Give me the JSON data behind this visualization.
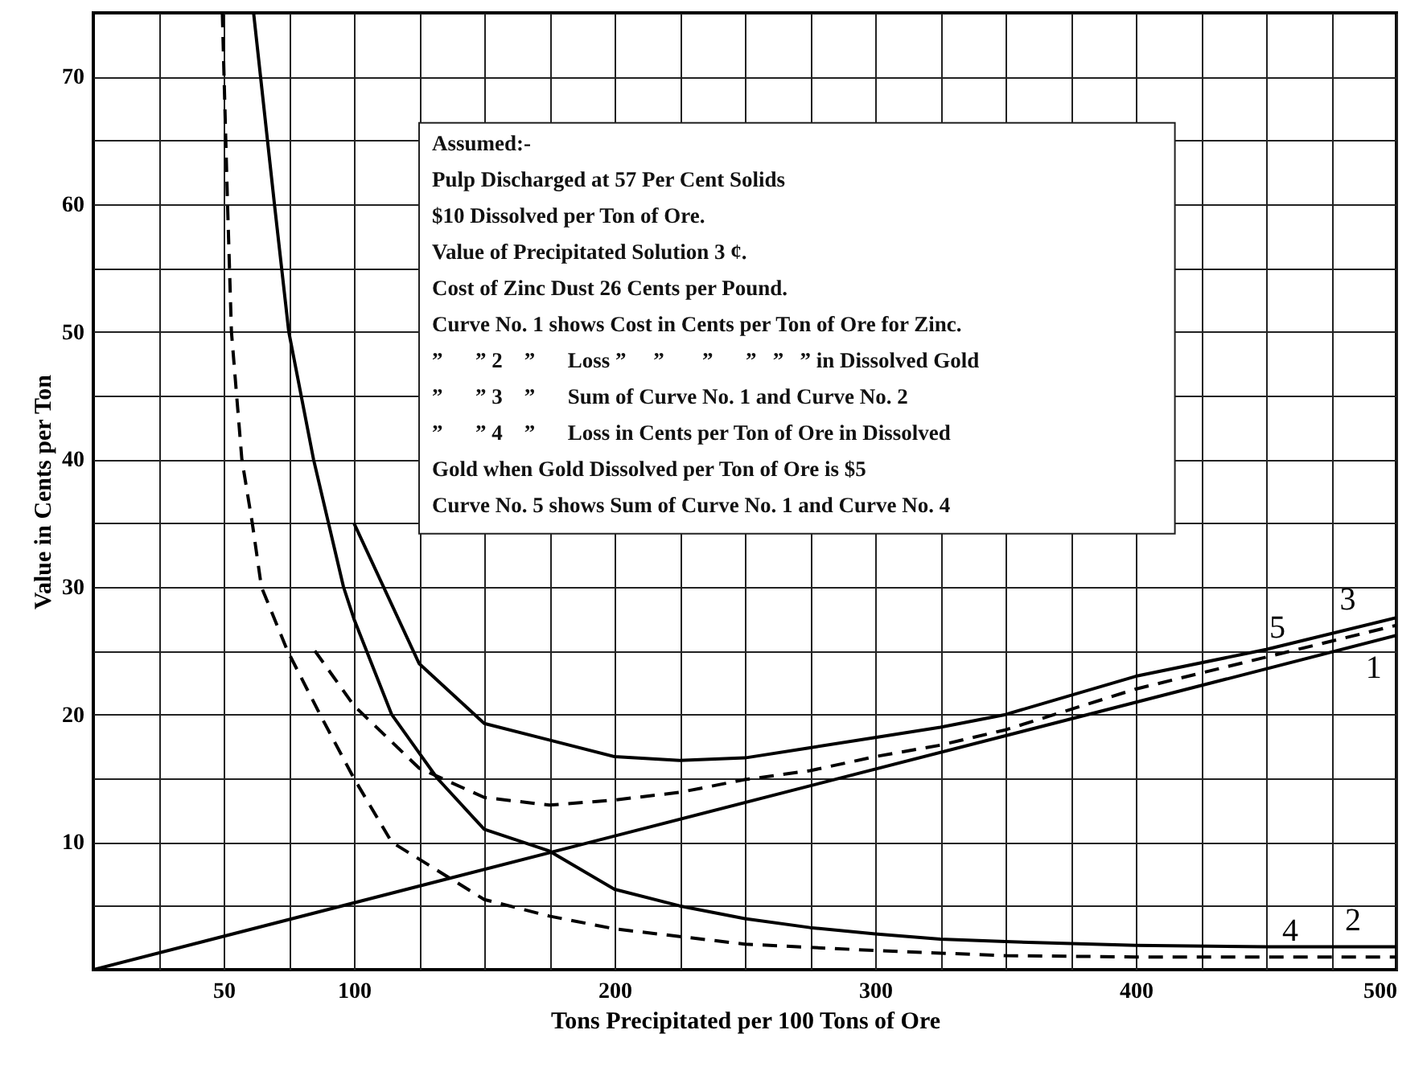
{
  "chart_data": {
    "type": "line",
    "xlabel": "Tons Precipitated per 100 Tons of Ore",
    "ylabel": "Value in Cents per Ton",
    "xlim": [
      0,
      500
    ],
    "ylim": [
      0,
      75
    ],
    "xticks": [
      {
        "value": 25,
        "label": null
      },
      50,
      {
        "value": 75,
        "label": null
      },
      100,
      {
        "value": 125,
        "label": null
      },
      {
        "value": 150,
        "label": null
      },
      {
        "value": 175,
        "label": null
      },
      200,
      {
        "value": 225,
        "label": null
      },
      {
        "value": 250,
        "label": null
      },
      {
        "value": 275,
        "label": null
      },
      300,
      {
        "value": 325,
        "label": null
      },
      {
        "value": 350,
        "label": null
      },
      {
        "value": 375,
        "label": null
      },
      400,
      {
        "value": 425,
        "label": null
      },
      {
        "value": 450,
        "label": null
      },
      {
        "value": 475,
        "label": null
      },
      500
    ],
    "yticks": [
      {
        "value": 5,
        "label": null
      },
      10,
      {
        "value": 15,
        "label": null
      },
      20,
      {
        "value": 25,
        "label": null
      },
      30,
      {
        "value": 35,
        "label": null
      },
      40,
      {
        "value": 45,
        "label": null
      },
      50,
      {
        "value": 55,
        "label": null
      },
      60,
      {
        "value": 65,
        "label": null
      },
      70
    ],
    "grid": true,
    "marker": "none",
    "series": [
      {
        "color": "#000000",
        "line_style": "solid",
        "x": [
          0,
          500
        ],
        "values": [
          0,
          26.2
        ]
      },
      {
        "color": "#000000",
        "line_style": "solid",
        "x": [
          61.5,
          69.5,
          75,
          84.5,
          96,
          100,
          114.5,
          132,
          150,
          175,
          200,
          225,
          250,
          275,
          300,
          325,
          350,
          400,
          450,
          500
        ],
        "values": [
          75,
          60,
          50,
          40,
          30,
          27.5,
          20,
          15,
          11,
          9.3,
          6.3,
          5,
          4,
          3.3,
          2.8,
          2.4,
          2.2,
          1.9,
          1.8,
          1.8
        ]
      },
      {
        "color": "#000000",
        "line_style": "solid",
        "x": [
          100,
          125,
          150,
          175,
          200,
          225,
          250,
          275,
          300,
          325,
          350,
          400,
          450,
          500
        ],
        "values": [
          35,
          24,
          19.3,
          18,
          16.7,
          16.4,
          16.6,
          17.4,
          18.2,
          19,
          20,
          23,
          25.1,
          27.6
        ]
      },
      {
        "color": "#000000",
        "line_style": "dashed",
        "x": [
          49.5,
          51.5,
          53,
          57,
          61,
          64.5,
          74.5,
          87,
          100,
          114.5,
          150,
          175,
          200,
          225,
          250,
          300,
          350,
          400,
          450,
          500
        ],
        "values": [
          75,
          60,
          50,
          40,
          35,
          30,
          25,
          20,
          15,
          10,
          5.5,
          4.2,
          3.2,
          2.6,
          2,
          1.5,
          1.1,
          1,
          1,
          1
        ]
      },
      {
        "color": "#000000",
        "line_style": "dashed",
        "x": [
          85,
          100,
          125,
          150,
          175,
          200,
          225,
          250,
          275,
          300,
          325,
          350,
          400,
          450,
          500
        ],
        "values": [
          25,
          20.7,
          15.8,
          13.5,
          12.9,
          13.3,
          13.9,
          14.9,
          15.6,
          16.7,
          17.6,
          18.8,
          22,
          24.5,
          27
        ]
      }
    ],
    "annotations": [
      "Assumed:-",
      "Pulp Discharged at 57 Per Cent Solids",
      "$10 Dissolved per Ton of Ore.",
      "Value of Precipitated Solution 3 ¢.",
      "Cost of Zinc Dust 26 Cents per Pound.",
      "Curve No. 1 shows Cost in Cents per Ton of Ore for Zinc.",
      "    ”      ” 2    ”      Loss ”     ”       ”      ”   ”   ” in Dissolved Gold",
      "    ”      ” 3    ”      Sum of Curve No. 1 and Curve No. 2",
      "    ”      ” 4    ”      Loss in Cents per Ton of Ore in Dissolved",
      "Gold when Gold Dissolved per Ton of Ore is $5",
      "Curve No. 5 shows Sum of Curve No. 1 and Curve No. 4",
      {
        "text": "5",
        "x": 458,
        "y": 24.8
      },
      {
        "text": "3",
        "x": 485,
        "y": 27
      },
      {
        "text": "1",
        "x": 495,
        "y": 25.9
      },
      {
        "text": "4",
        "x": 463,
        "y": 1
      },
      {
        "text": "2",
        "x": 487,
        "y": 1.8
      }
    ]
  }
}
